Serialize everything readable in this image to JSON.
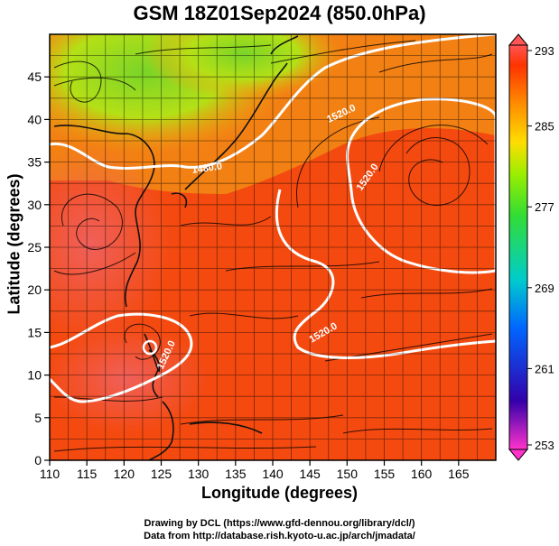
{
  "title": "GSM 18Z01Sep2024 (850.0hPa)",
  "x_axis": {
    "label": "Longitude (degrees)",
    "ticks": [
      "110",
      "115",
      "120",
      "125",
      "130",
      "135",
      "140",
      "145",
      "150",
      "155",
      "160",
      "165"
    ],
    "range": [
      110,
      170
    ]
  },
  "y_axis": {
    "label": "Latitude  (degrees)",
    "ticks": [
      "0",
      "5",
      "10",
      "15",
      "20",
      "25",
      "30",
      "35",
      "40",
      "45"
    ],
    "range": [
      0,
      50
    ]
  },
  "colorbar": {
    "ticks": [
      "293",
      "285",
      "277",
      "269",
      "261",
      "253"
    ],
    "min": 253,
    "max": 293,
    "colors": [
      "#ff33cc",
      "#3300aa",
      "#0066ff",
      "#00cccc",
      "#33dd33",
      "#99ee00",
      "#ffdd00",
      "#ff8800",
      "#ff3300",
      "#ff5555"
    ]
  },
  "contour_labels": [
    "1480.0",
    "1520.0",
    "1520.0",
    "1520.0",
    "1520.0"
  ],
  "credits": {
    "line1": "Drawing by DCL (https://www.gfd-dennou.org/library/dcl/)",
    "line2": "Data from http://database.rish.kyoto-u.ac.jp/arch/jmadata/"
  },
  "field_colors": {
    "warm": "#f44a10",
    "hot": "#f05c4c",
    "mid": "#f28a14",
    "cool": "#dce60a",
    "cold": "#7ad428"
  }
}
